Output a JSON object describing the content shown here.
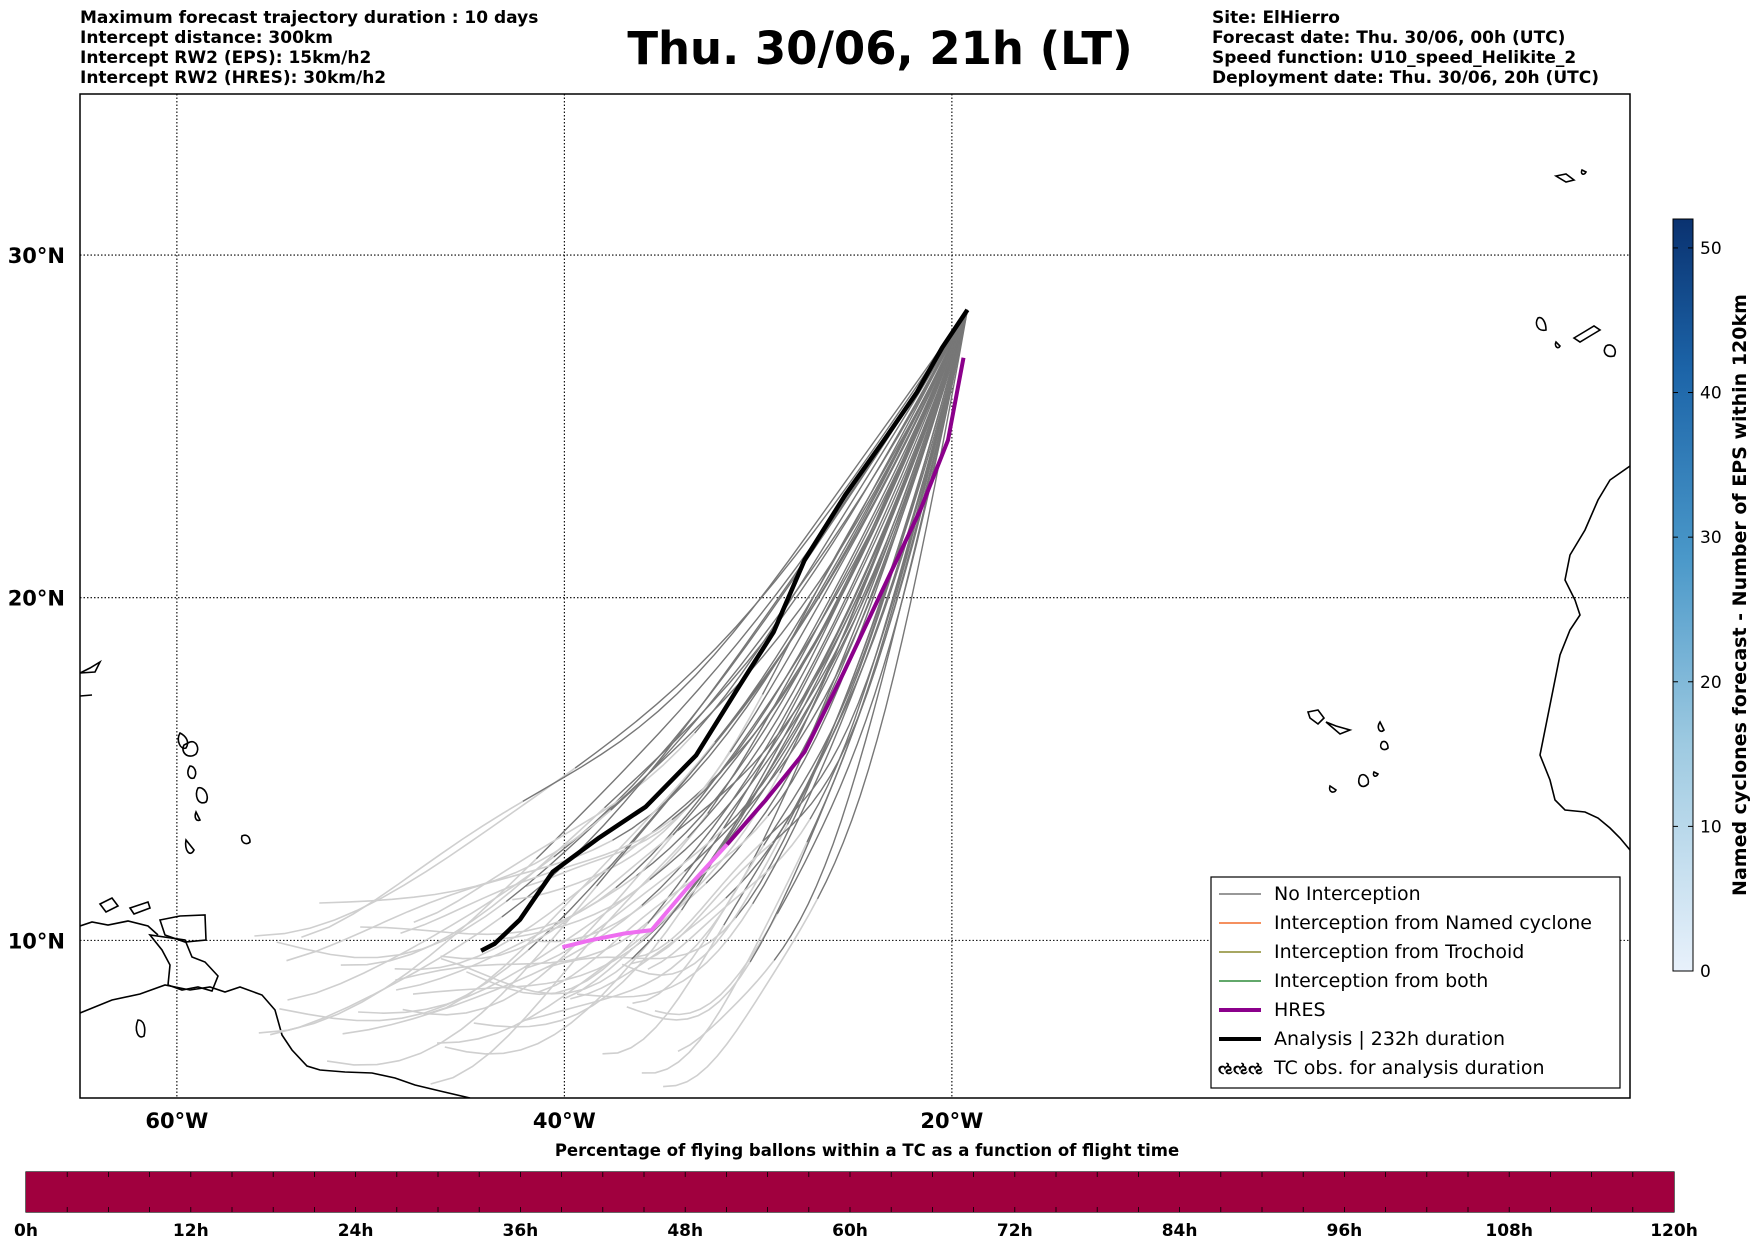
{
  "header": {
    "left_info": [
      "Maximum forecast trajectory duration : 10 days",
      "Intercept distance: 300km",
      "Intercept RW2 (EPS):  15km/h2",
      "Intercept RW2 (HRES): 30km/h2"
    ],
    "title": "Thu. 30/06, 21h (LT)",
    "right_info": [
      "Site: ElHierro",
      "Forecast date: Thu. 30/06, 00h (UTC)",
      "Speed function: U10_speed_Helikite_2",
      "Deployment date: Thu. 30/06, 20h (UTC)"
    ]
  },
  "chart_data": {
    "type": "line",
    "lon_range": [
      -65,
      15
    ],
    "lat_range": [
      5.4,
      34.7
    ],
    "x_ticks": [
      {
        "lon": -60,
        "label": "60°W"
      },
      {
        "lon": -40,
        "label": "40°W"
      },
      {
        "lon": -20,
        "label": "20°W"
      }
    ],
    "y_ticks": [
      {
        "lat": 10,
        "label": "10°N"
      },
      {
        "lat": 20,
        "label": "20°N"
      },
      {
        "lat": 30,
        "label": "30°N"
      }
    ],
    "grid": true,
    "legend": {
      "position": "bottom-right",
      "entries": [
        {
          "label": "No Interception",
          "color": "#777777"
        },
        {
          "label": "Interception from Named cyclone",
          "color": "#f26c2a"
        },
        {
          "label": "Interception from Trochoid",
          "color": "#8a8a2e"
        },
        {
          "label": "Interception from both",
          "color": "#2e8b3a"
        },
        {
          "label": "HRES",
          "color": "#8b008b"
        },
        {
          "label": "Analysis | 232h duration",
          "color": "#000000"
        },
        {
          "label": "TC obs. for analysis duration",
          "symbol": "ઌઌઌ"
        }
      ]
    },
    "colorbar": {
      "label": "Named cyclones forecast - Number of EPS within 120km",
      "ticks": [
        0,
        10,
        20,
        30,
        40,
        50
      ],
      "max": 52,
      "colors": [
        "#e8f1fb",
        "#9ecae1",
        "#4a98c9",
        "#1c64a8",
        "#0a3270"
      ]
    },
    "analysis": [
      [
        -44.3,
        9.7
      ],
      [
        -43.6,
        9.9
      ],
      [
        -42.3,
        10.6
      ],
      [
        -40.6,
        12.0
      ],
      [
        -38.2,
        13.0
      ],
      [
        -35.8,
        13.9
      ],
      [
        -33.2,
        15.4
      ],
      [
        -31.0,
        17.4
      ],
      [
        -29.2,
        19.0
      ],
      [
        -27.6,
        21.1
      ],
      [
        -25.5,
        23.0
      ],
      [
        -23.5,
        24.6
      ],
      [
        -21.8,
        26.0
      ],
      [
        -20.5,
        27.3
      ],
      [
        -19.2,
        28.4
      ]
    ],
    "hres": [
      [
        -40.1,
        9.8
      ],
      [
        -38.7,
        10.0
      ],
      [
        -36.9,
        10.2
      ],
      [
        -35.5,
        10.3
      ],
      [
        -33.7,
        11.5
      ],
      [
        -31.6,
        12.8
      ],
      [
        -29.6,
        14.1
      ],
      [
        -27.6,
        15.5
      ],
      [
        -25.6,
        17.8
      ],
      [
        -23.6,
        20.2
      ],
      [
        -21.6,
        22.6
      ],
      [
        -20.2,
        24.6
      ],
      [
        -19.4,
        27.0
      ]
    ],
    "eps_spread": {
      "lon_range": [
        -56,
        -19.2
      ],
      "lat_range": [
        6.4,
        28.4
      ],
      "member_count": 51
    },
    "flight_time_bar": {
      "title": "Percentage of flying ballons within a TC as a function of flight time",
      "tick_labels": [
        "0h",
        "12h",
        "24h",
        "36h",
        "48h",
        "60h",
        "72h",
        "84h",
        "96h",
        "108h",
        "120h"
      ],
      "bar_color": "#a0003e",
      "percent": 100
    }
  }
}
